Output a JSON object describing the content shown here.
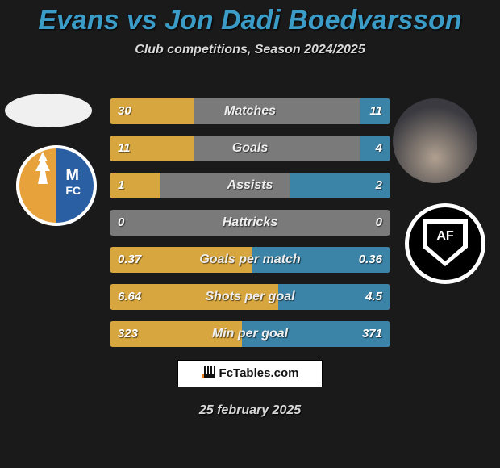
{
  "title": "Evans vs Jon Dadi Boedvarsson",
  "subtitle": "Club competitions, Season 2024/2025",
  "footer_brand": "FcTables.com",
  "footer_date": "25 february 2025",
  "colors": {
    "background": "#1a1a1a",
    "title": "#3b9cc7",
    "left_fill": "#d8a63e",
    "right_fill": "#3b84a8",
    "bar_bg": "#7a7a7a",
    "text": "#efefef"
  },
  "left_club": {
    "name": "Mansfield Town",
    "badge_colors": [
      "#e8a23c",
      "#2b5fa4"
    ]
  },
  "right_club": {
    "name": "Academico Viseu",
    "badge_colors": [
      "#000000",
      "#ffffff"
    ]
  },
  "bars": [
    {
      "label": "Matches",
      "left_val": "30",
      "right_val": "11",
      "left_pct": 30,
      "right_pct": 11
    },
    {
      "label": "Goals",
      "left_val": "11",
      "right_val": "4",
      "left_pct": 30,
      "right_pct": 11
    },
    {
      "label": "Assists",
      "left_val": "1",
      "right_val": "2",
      "left_pct": 18,
      "right_pct": 36
    },
    {
      "label": "Hattricks",
      "left_val": "0",
      "right_val": "0",
      "left_pct": 0,
      "right_pct": 0
    },
    {
      "label": "Goals per match",
      "left_val": "0.37",
      "right_val": "0.36",
      "left_pct": 51,
      "right_pct": 49
    },
    {
      "label": "Shots per goal",
      "left_val": "6.64",
      "right_val": "4.5",
      "left_pct": 60,
      "right_pct": 40
    },
    {
      "label": "Min per goal",
      "left_val": "323",
      "right_val": "371",
      "left_pct": 47,
      "right_pct": 53
    }
  ]
}
